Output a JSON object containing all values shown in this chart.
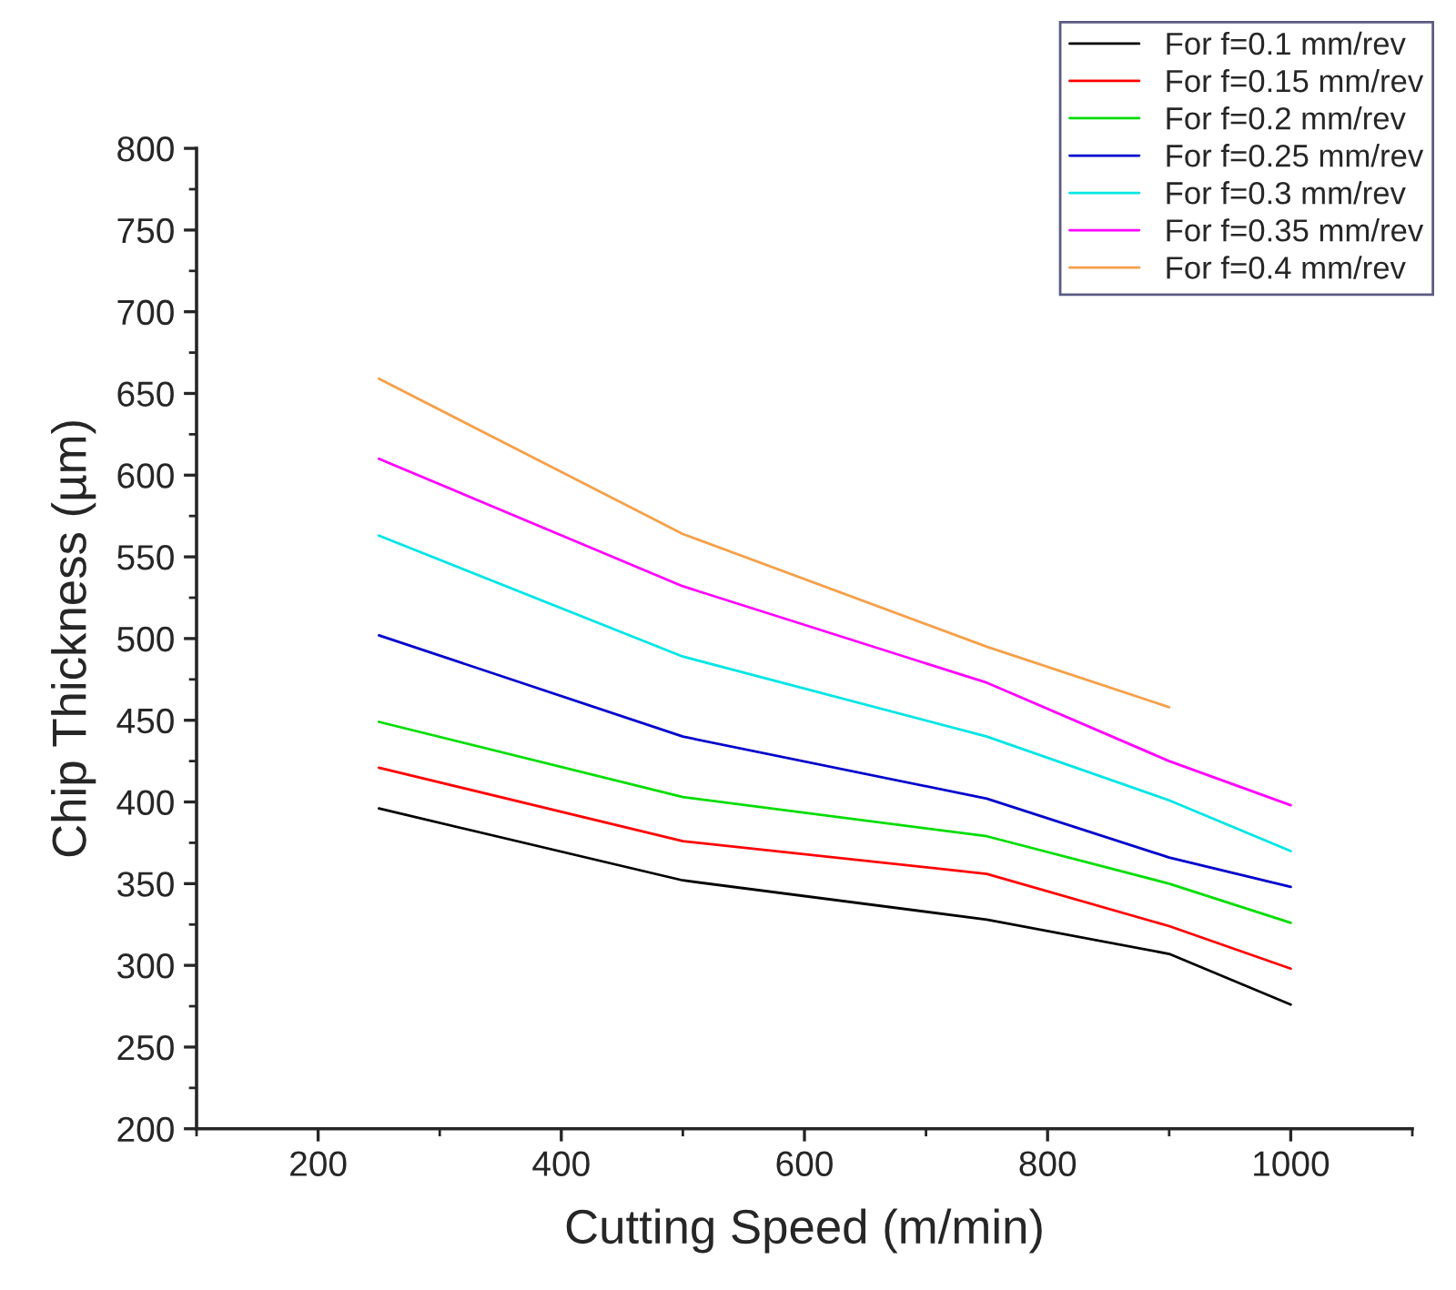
{
  "chart_data": {
    "type": "line",
    "xlabel": "Cutting Speed (m/min)",
    "ylabel": "Chip Thickness (µm)",
    "xlim": [
      100,
      1100
    ],
    "xticks": [
      200,
      400,
      600,
      800,
      1000
    ],
    "ylim": [
      200,
      800
    ],
    "yticks": [
      200,
      250,
      300,
      350,
      400,
      450,
      500,
      550,
      600,
      650,
      700,
      750,
      800
    ],
    "grid": false,
    "legend": "top right",
    "marker": "none",
    "line_style": "solid",
    "series": [
      {
        "name": "For f=0.1 mm/rev",
        "color": "#000000",
        "x": [
          250,
          500,
          750,
          900,
          1000
        ],
        "values": [
          396,
          352,
          328,
          307,
          276
        ]
      },
      {
        "name": "For f=0.15 mm/rev",
        "color": "#ff0000",
        "x": [
          250,
          500,
          750,
          900,
          1000
        ],
        "values": [
          421,
          376,
          356,
          324,
          298
        ]
      },
      {
        "name": "For f=0.2 mm/rev",
        "color": "#00dd00",
        "x": [
          250,
          500,
          750,
          900,
          1000
        ],
        "values": [
          449,
          403,
          379,
          350,
          326
        ]
      },
      {
        "name": "For f=0.25 mm/rev",
        "color": "#0000cc",
        "x": [
          250,
          500,
          750,
          900,
          1000
        ],
        "values": [
          502,
          440,
          402,
          366,
          348
        ]
      },
      {
        "name": "For f=0.3 mm/rev",
        "color": "#00e5e5",
        "x": [
          250,
          500,
          750,
          900,
          1000
        ],
        "values": [
          563,
          489,
          440,
          401,
          370
        ]
      },
      {
        "name": "For f=0.35 mm/rev",
        "color": "#ff00ff",
        "x": [
          250,
          500,
          750,
          900,
          1000
        ],
        "values": [
          610,
          532,
          473,
          425,
          398
        ]
      },
      {
        "name": "For f=0.4 mm/rev",
        "color": "#f5a04a",
        "x": [
          250,
          500,
          750,
          900
        ],
        "values": [
          659,
          564,
          495,
          458
        ]
      }
    ]
  }
}
